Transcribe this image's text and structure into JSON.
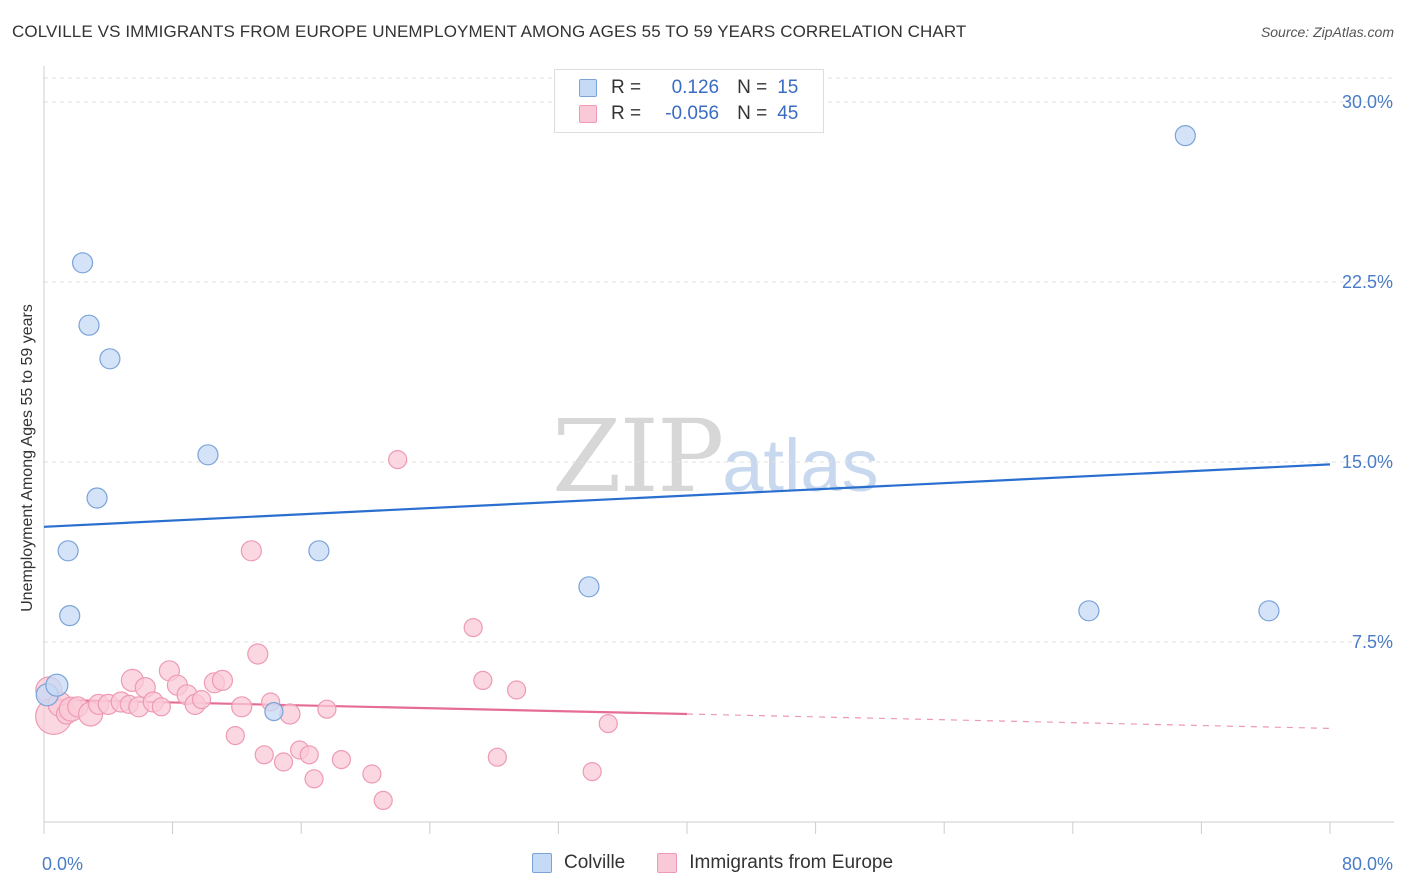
{
  "title": "COLVILLE VS IMMIGRANTS FROM EUROPE UNEMPLOYMENT AMONG AGES 55 TO 59 YEARS CORRELATION CHART",
  "source": "Source: ZipAtlas.com",
  "watermark": {
    "zip": "ZIP",
    "atlas": "atlas"
  },
  "legend_box": {
    "rows": [
      {
        "r_label": "R =",
        "r_value": "0.126",
        "n_label": "N =",
        "n_value": "15",
        "color": "#a8c8f0"
      },
      {
        "r_label": "R =",
        "r_value": "-0.056",
        "n_label": "N =",
        "n_value": "45",
        "color": "#f5b8cb"
      }
    ]
  },
  "bottom_legend": {
    "colville": "Colville",
    "immigrants": "Immigrants from Europe"
  },
  "colors": {
    "colville_fill": "#c5daf5",
    "colville_stroke": "#7aa3d8",
    "colville_line": "#2a6fd0",
    "immig_fill": "#f9c9d7",
    "immig_stroke": "#ee9ab4",
    "immig_line": "#e56c95",
    "tick_text": "#4a7cc7",
    "grid": "#e2e2e2"
  },
  "chart_data": {
    "type": "scatter",
    "title": "COLVILLE VS IMMIGRANTS FROM EUROPE UNEMPLOYMENT AMONG AGES 55 TO 59 YEARS CORRELATION CHART",
    "xlabel": "",
    "ylabel": "Unemployment Among Ages 55 to 59 years",
    "xlim": [
      0,
      80
    ],
    "ylim": [
      0,
      31
    ],
    "x_tick_labels": [
      {
        "value": 0,
        "label": "0.0%"
      },
      {
        "value": 80,
        "label": "80.0%"
      }
    ],
    "y_ticks": [
      {
        "value": 7.5,
        "label": "7.5%"
      },
      {
        "value": 15,
        "label": "15.0%"
      },
      {
        "value": 22.5,
        "label": "22.5%"
      },
      {
        "value": 30,
        "label": "30.0%"
      }
    ],
    "x_minor_ticks": [
      0,
      8,
      16,
      24,
      32,
      40,
      48,
      56,
      64,
      72,
      80
    ],
    "series": [
      {
        "name": "Colville",
        "R": 0.126,
        "N": 15,
        "points": [
          [
            0.2,
            5.3,
            11
          ],
          [
            0.8,
            5.7,
            11
          ],
          [
            1.5,
            11.3,
            10
          ],
          [
            1.6,
            8.6,
            10
          ],
          [
            2.4,
            23.3,
            10
          ],
          [
            2.8,
            20.7,
            10
          ],
          [
            3.3,
            13.5,
            10
          ],
          [
            4.1,
            19.3,
            10
          ],
          [
            10.2,
            15.3,
            10
          ],
          [
            14.3,
            4.6,
            9
          ],
          [
            17.1,
            11.3,
            10
          ],
          [
            33.9,
            9.8,
            10
          ],
          [
            65.0,
            8.8,
            10
          ],
          [
            71.0,
            28.6,
            10
          ],
          [
            76.2,
            8.8,
            10
          ]
        ],
        "trend": {
          "x_start": 0,
          "y_start": 12.3,
          "x_end": 80,
          "y_end": 14.9,
          "dashed_from": null
        }
      },
      {
        "name": "Immigrants from Europe",
        "R": -0.056,
        "N": 45,
        "points": [
          [
            0.3,
            5.5,
            13
          ],
          [
            0.6,
            4.4,
            18
          ],
          [
            1.0,
            4.9,
            12
          ],
          [
            1.4,
            4.5,
            10
          ],
          [
            1.7,
            4.7,
            12
          ],
          [
            2.1,
            4.8,
            10
          ],
          [
            2.9,
            4.5,
            12
          ],
          [
            3.4,
            4.9,
            10
          ],
          [
            4.0,
            4.9,
            10
          ],
          [
            4.8,
            5.0,
            10
          ],
          [
            5.3,
            4.9,
            9
          ],
          [
            5.5,
            5.9,
            11
          ],
          [
            5.9,
            4.8,
            10
          ],
          [
            6.3,
            5.6,
            10
          ],
          [
            6.8,
            5.0,
            10
          ],
          [
            7.3,
            4.8,
            9
          ],
          [
            7.8,
            6.3,
            10
          ],
          [
            8.3,
            5.7,
            10
          ],
          [
            8.9,
            5.3,
            10
          ],
          [
            9.4,
            4.9,
            10
          ],
          [
            9.8,
            5.1,
            9
          ],
          [
            10.6,
            5.8,
            10
          ],
          [
            11.1,
            5.9,
            10
          ],
          [
            11.9,
            3.6,
            9
          ],
          [
            12.3,
            4.8,
            10
          ],
          [
            12.9,
            11.3,
            10
          ],
          [
            13.3,
            7.0,
            10
          ],
          [
            13.7,
            2.8,
            9
          ],
          [
            14.1,
            5.0,
            9
          ],
          [
            14.9,
            2.5,
            9
          ],
          [
            15.3,
            4.5,
            10
          ],
          [
            15.9,
            3.0,
            9
          ],
          [
            16.5,
            2.8,
            9
          ],
          [
            16.8,
            1.8,
            9
          ],
          [
            17.6,
            4.7,
            9
          ],
          [
            18.5,
            2.6,
            9
          ],
          [
            20.4,
            2.0,
            9
          ],
          [
            21.1,
            0.9,
            9
          ],
          [
            22.0,
            15.1,
            9
          ],
          [
            26.7,
            8.1,
            9
          ],
          [
            27.3,
            5.9,
            9
          ],
          [
            28.2,
            2.7,
            9
          ],
          [
            29.4,
            5.5,
            9
          ],
          [
            34.1,
            2.1,
            9
          ],
          [
            35.1,
            4.1,
            9
          ]
        ],
        "trend": {
          "x_start": 0,
          "y_start": 5.1,
          "x_end": 80,
          "y_end": 3.9,
          "dashed_from": 40
        }
      }
    ]
  }
}
